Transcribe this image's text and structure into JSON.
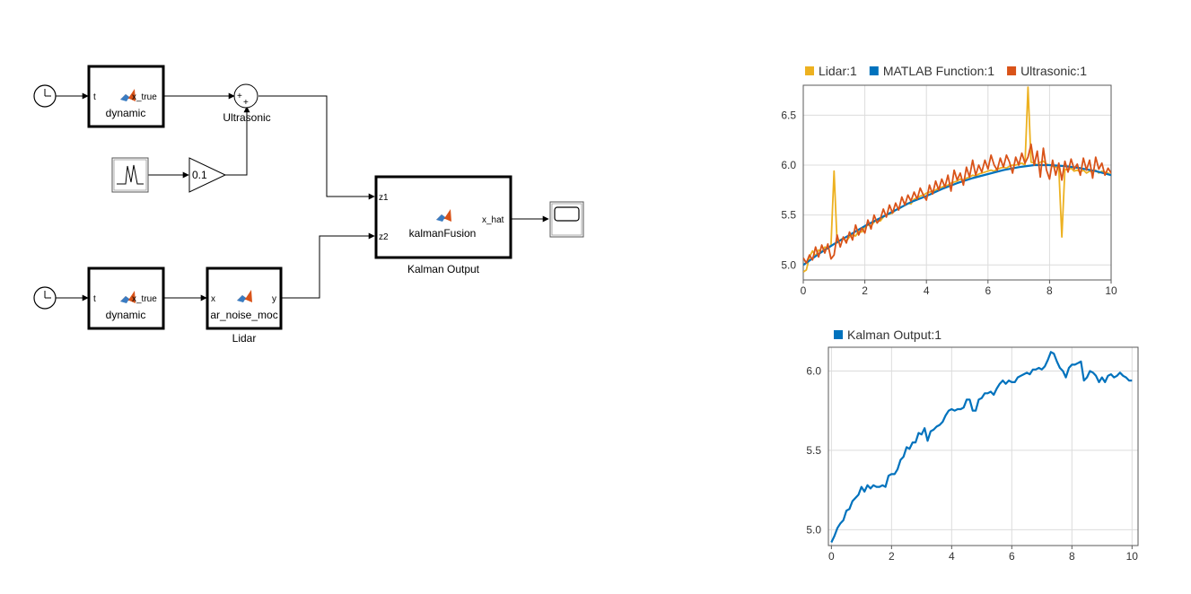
{
  "diagram": {
    "blocks": {
      "dynamic_top": {
        "in_port": "t",
        "out_port": "x_true",
        "name": "dynamic"
      },
      "dynamic_bottom": {
        "in_port": "t",
        "out_port": "x_true",
        "name": "dynamic"
      },
      "sum": {
        "signs": [
          "+",
          "+"
        ],
        "label": "Ultrasonic"
      },
      "gain": {
        "value": "0.1"
      },
      "lidar_noise": {
        "in_port": "x",
        "out_port": "y",
        "name": "ar_noise_moc",
        "label": "Lidar"
      },
      "kalman": {
        "in_ports": [
          "z1",
          "z2"
        ],
        "out_port": "x_hat",
        "name": "kalmanFusion",
        "label": "Kalman Output"
      }
    },
    "icons": [
      "clock-icon",
      "clock-icon",
      "signal-source-icon",
      "matlab-function-icon",
      "scope-icon"
    ]
  },
  "chart_data": [
    {
      "type": "line",
      "title": "",
      "xlabel": "",
      "ylabel": "",
      "xlim": [
        0,
        10
      ],
      "ylim": [
        4.85,
        6.8
      ],
      "x_ticks": [
        "0",
        "2",
        "4",
        "6",
        "8",
        "10"
      ],
      "y_ticks": [
        "5.0",
        "5.5",
        "6.0",
        "6.5"
      ],
      "grid": true,
      "legend_position": "top",
      "series": [
        {
          "name": "Lidar:1",
          "color": "#EDB120",
          "x": [
            0,
            0.1,
            0.2,
            0.3,
            0.4,
            0.5,
            0.6,
            0.7,
            0.8,
            0.9,
            1.0,
            1.1,
            1.2,
            1.3,
            1.4,
            1.5,
            1.6,
            1.7,
            1.8,
            1.9,
            2.0,
            2.1,
            2.2,
            2.3,
            2.4,
            2.5,
            2.6,
            2.7,
            2.8,
            2.9,
            3.0,
            3.1,
            3.2,
            3.3,
            3.4,
            3.5,
            3.6,
            3.7,
            3.8,
            3.9,
            4.0,
            4.1,
            4.2,
            4.3,
            4.4,
            4.5,
            4.6,
            4.7,
            4.8,
            4.9,
            5.0,
            5.1,
            5.2,
            5.3,
            5.4,
            5.5,
            5.6,
            5.7,
            5.8,
            5.9,
            6.0,
            6.1,
            6.2,
            6.3,
            6.4,
            6.5,
            6.6,
            6.7,
            6.8,
            6.9,
            7.0,
            7.1,
            7.2,
            7.3,
            7.4,
            7.5,
            7.6,
            7.7,
            7.8,
            7.9,
            8.0,
            8.1,
            8.2,
            8.3,
            8.4,
            8.5,
            8.6,
            8.7,
            8.8,
            8.9,
            9.0,
            9.1,
            9.2,
            9.3,
            9.4,
            9.5,
            9.6,
            9.7,
            9.8,
            9.9,
            10.0
          ],
          "values": [
            4.93,
            4.95,
            5.08,
            5.14,
            5.09,
            5.15,
            5.13,
            5.18,
            5.16,
            5.2,
            5.94,
            5.22,
            5.25,
            5.27,
            5.24,
            5.28,
            5.3,
            5.29,
            5.34,
            5.33,
            5.38,
            5.4,
            5.39,
            5.43,
            5.45,
            5.44,
            5.48,
            5.5,
            5.51,
            5.52,
            5.55,
            5.56,
            5.58,
            5.6,
            5.62,
            5.61,
            5.66,
            5.67,
            5.69,
            5.7,
            5.72,
            5.73,
            5.74,
            5.75,
            5.77,
            5.78,
            5.79,
            5.8,
            5.82,
            5.83,
            5.84,
            5.86,
            5.85,
            5.87,
            5.88,
            5.9,
            5.89,
            5.91,
            5.92,
            5.93,
            5.94,
            5.95,
            5.94,
            5.96,
            5.97,
            5.98,
            5.97,
            5.99,
            6.0,
            6.0,
            6.01,
            6.02,
            6.0,
            6.78,
            6.03,
            6.02,
            6.0,
            6.03,
            6.04,
            6.01,
            6.0,
            5.99,
            5.98,
            5.97,
            5.28,
            5.96,
            5.95,
            5.97,
            5.94,
            5.95,
            5.93,
            5.95,
            5.92,
            5.94,
            5.93,
            5.95,
            5.92,
            5.94,
            5.93,
            5.92,
            5.9
          ]
        },
        {
          "name": "MATLAB Function:1",
          "color": "#0072BD",
          "x": [
            0,
            0.5,
            1,
            1.5,
            2,
            2.5,
            3,
            3.5,
            4,
            4.5,
            5,
            5.5,
            6,
            6.5,
            7,
            7.5,
            8,
            8.5,
            9,
            9.5,
            10
          ],
          "values": [
            5.0,
            5.11,
            5.21,
            5.3,
            5.39,
            5.47,
            5.55,
            5.63,
            5.69,
            5.76,
            5.82,
            5.87,
            5.91,
            5.95,
            5.98,
            6.0,
            6.0,
            5.99,
            5.97,
            5.94,
            5.9
          ]
        },
        {
          "name": "Ultrasonic:1",
          "color": "#D95319",
          "x": [
            0,
            0.1,
            0.2,
            0.3,
            0.4,
            0.5,
            0.6,
            0.7,
            0.8,
            0.9,
            1.0,
            1.1,
            1.2,
            1.3,
            1.4,
            1.5,
            1.6,
            1.7,
            1.8,
            1.9,
            2.0,
            2.1,
            2.2,
            2.3,
            2.4,
            2.5,
            2.6,
            2.7,
            2.8,
            2.9,
            3.0,
            3.1,
            3.2,
            3.3,
            3.4,
            3.5,
            3.6,
            3.7,
            3.8,
            3.9,
            4.0,
            4.1,
            4.2,
            4.3,
            4.4,
            4.5,
            4.6,
            4.7,
            4.8,
            4.9,
            5.0,
            5.1,
            5.2,
            5.3,
            5.4,
            5.5,
            5.6,
            5.7,
            5.8,
            5.9,
            6.0,
            6.1,
            6.2,
            6.3,
            6.4,
            6.5,
            6.6,
            6.7,
            6.8,
            6.9,
            7.0,
            7.1,
            7.2,
            7.3,
            7.4,
            7.5,
            7.6,
            7.7,
            7.8,
            7.9,
            8.0,
            8.1,
            8.2,
            8.3,
            8.4,
            8.5,
            8.6,
            8.7,
            8.8,
            8.9,
            9.0,
            9.1,
            9.2,
            9.3,
            9.4,
            9.5,
            9.6,
            9.7,
            9.8,
            9.9,
            10.0
          ],
          "values": [
            5.07,
            5.02,
            5.1,
            5.05,
            5.18,
            5.08,
            5.2,
            5.12,
            5.21,
            5.06,
            5.1,
            5.3,
            5.18,
            5.28,
            5.22,
            5.33,
            5.25,
            5.4,
            5.3,
            5.37,
            5.32,
            5.45,
            5.36,
            5.5,
            5.42,
            5.46,
            5.56,
            5.48,
            5.6,
            5.52,
            5.62,
            5.55,
            5.68,
            5.6,
            5.7,
            5.64,
            5.73,
            5.66,
            5.77,
            5.7,
            5.65,
            5.8,
            5.71,
            5.84,
            5.75,
            5.86,
            5.78,
            5.9,
            5.74,
            5.95,
            5.85,
            5.92,
            5.8,
            5.98,
            5.88,
            6.05,
            5.9,
            6.0,
            5.93,
            6.05,
            5.96,
            6.1,
            6.0,
            5.95,
            6.07,
            5.98,
            6.1,
            6.03,
            5.92,
            6.08,
            6.0,
            6.12,
            6.02,
            6.08,
            6.21,
            6.0,
            6.14,
            5.88,
            6.17,
            5.95,
            5.86,
            6.05,
            5.9,
            6.02,
            5.85,
            6.04,
            5.93,
            6.06,
            5.96,
            6.01,
            5.9,
            6.07,
            5.95,
            6.05,
            5.87,
            6.08,
            5.96,
            6.02,
            5.9,
            5.97,
            5.92
          ]
        }
      ]
    },
    {
      "type": "line",
      "title": "",
      "xlabel": "",
      "ylabel": "",
      "xlim": [
        -0.1,
        10.2
      ],
      "ylim": [
        4.9,
        6.15
      ],
      "x_ticks": [
        "0",
        "2",
        "4",
        "6",
        "8",
        "10"
      ],
      "y_ticks": [
        "5.0",
        "5.5",
        "6.0"
      ],
      "grid": true,
      "legend_position": "top",
      "series": [
        {
          "name": "Kalman Output:1",
          "color": "#0072BD",
          "x": [
            0,
            0.1,
            0.2,
            0.3,
            0.4,
            0.5,
            0.6,
            0.7,
            0.8,
            0.9,
            1.0,
            1.1,
            1.2,
            1.3,
            1.4,
            1.5,
            1.6,
            1.7,
            1.8,
            1.9,
            2.0,
            2.1,
            2.2,
            2.3,
            2.4,
            2.5,
            2.6,
            2.7,
            2.8,
            2.9,
            3.0,
            3.1,
            3.2,
            3.3,
            3.4,
            3.5,
            3.6,
            3.7,
            3.8,
            3.9,
            4.0,
            4.1,
            4.2,
            4.3,
            4.4,
            4.5,
            4.6,
            4.7,
            4.8,
            4.9,
            5.0,
            5.1,
            5.2,
            5.3,
            5.4,
            5.5,
            5.6,
            5.7,
            5.8,
            5.9,
            6.0,
            6.1,
            6.2,
            6.3,
            6.4,
            6.5,
            6.6,
            6.7,
            6.8,
            6.9,
            7.0,
            7.1,
            7.2,
            7.3,
            7.4,
            7.5,
            7.6,
            7.7,
            7.8,
            7.9,
            8.0,
            8.1,
            8.2,
            8.3,
            8.4,
            8.5,
            8.6,
            8.7,
            8.8,
            8.9,
            9.0,
            9.1,
            9.2,
            9.3,
            9.4,
            9.5,
            9.6,
            9.7,
            9.8,
            9.9,
            10.0
          ],
          "values": [
            4.92,
            4.96,
            5.01,
            5.04,
            5.06,
            5.12,
            5.13,
            5.18,
            5.2,
            5.22,
            5.27,
            5.24,
            5.28,
            5.26,
            5.28,
            5.27,
            5.27,
            5.28,
            5.27,
            5.34,
            5.35,
            5.35,
            5.38,
            5.44,
            5.46,
            5.52,
            5.51,
            5.55,
            5.55,
            5.61,
            5.6,
            5.64,
            5.56,
            5.62,
            5.63,
            5.65,
            5.66,
            5.68,
            5.72,
            5.75,
            5.76,
            5.75,
            5.76,
            5.76,
            5.77,
            5.82,
            5.82,
            5.75,
            5.75,
            5.82,
            5.83,
            5.86,
            5.86,
            5.87,
            5.85,
            5.89,
            5.92,
            5.94,
            5.92,
            5.94,
            5.93,
            5.93,
            5.96,
            5.97,
            5.98,
            5.99,
            5.98,
            6.01,
            6.01,
            6.02,
            6.01,
            6.03,
            6.07,
            6.12,
            6.11,
            6.06,
            6.02,
            6.0,
            5.96,
            6.02,
            6.04,
            6.04,
            6.05,
            6.06,
            5.94,
            5.96,
            6.0,
            5.99,
            5.97,
            5.93,
            5.96,
            5.93,
            5.97,
            5.98,
            5.96,
            5.97,
            5.99,
            5.97,
            5.96,
            5.94,
            5.94
          ]
        }
      ]
    }
  ]
}
